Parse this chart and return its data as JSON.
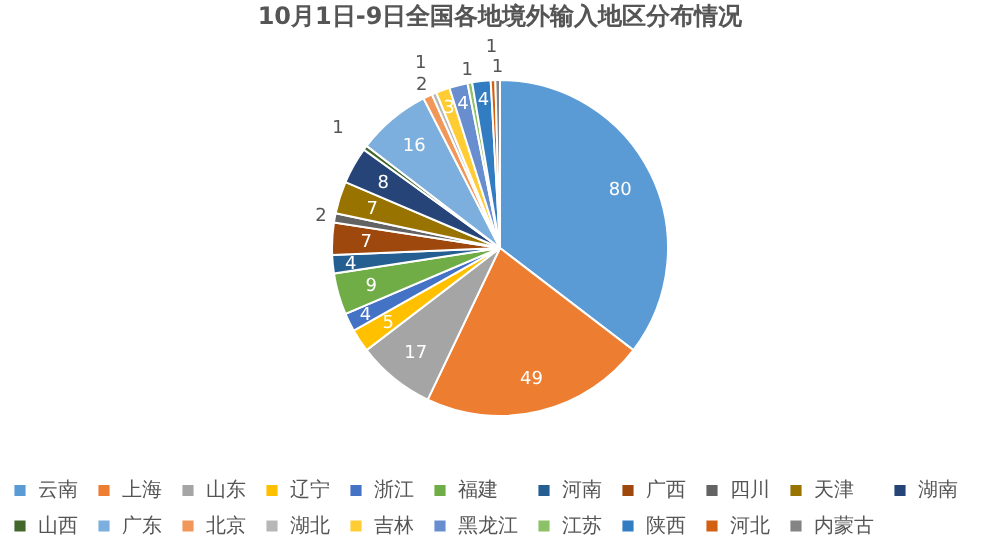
{
  "chart_data": {
    "type": "pie",
    "title": "10月1日-9日全国各地境外输入地区分布情况",
    "categories": [
      "云南",
      "上海",
      "山东",
      "辽宁",
      "浙江",
      "福建",
      "河南",
      "广西",
      "四川",
      "天津",
      "湖南",
      "山西",
      "广东",
      "北京",
      "湖北",
      "吉林",
      "黑龙江",
      "江苏",
      "陕西",
      "河北",
      "内蒙古"
    ],
    "values": [
      80,
      49,
      17,
      5,
      4,
      9,
      4,
      7,
      2,
      7,
      8,
      1,
      16,
      2,
      1,
      3,
      4,
      1,
      4,
      1,
      1
    ],
    "colors": [
      "#5b9bd5",
      "#ed7d31",
      "#a5a5a5",
      "#ffc000",
      "#4472c4",
      "#70ad47",
      "#255e91",
      "#9e480e",
      "#636363",
      "#997300",
      "#264478",
      "#43682b",
      "#7cafdd",
      "#f1975a",
      "#b7b7b7",
      "#ffcd33",
      "#698ed0",
      "#8cc168",
      "#327dc2",
      "#d26012",
      "#848484"
    ],
    "data_labels": true,
    "legend": "bottom"
  }
}
